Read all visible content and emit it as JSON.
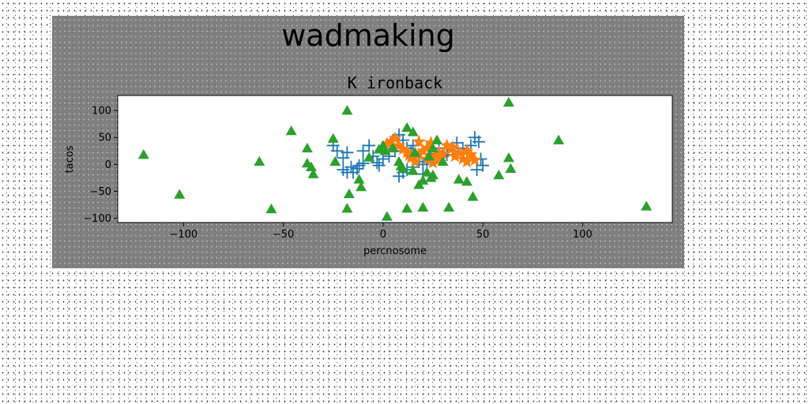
{
  "chart_data": {
    "type": "scatter",
    "suptitle": "wadmaking",
    "title": "K ironback",
    "xlabel": "percnosome",
    "ylabel": "tacos",
    "xlim": [
      -133,
      145
    ],
    "ylim": [
      -108,
      128
    ],
    "xticks": [
      -100,
      -50,
      0,
      50,
      100
    ],
    "yticks": [
      -100,
      -50,
      0,
      50,
      100
    ],
    "grid": false,
    "series": [
      {
        "marker": "plus",
        "color": "#1f77b4",
        "points": [
          [
            -25,
            35
          ],
          [
            -23,
            25
          ],
          [
            -20,
            12
          ],
          [
            -18,
            22
          ],
          [
            -16,
            -5
          ],
          [
            -20,
            -10
          ],
          [
            -18,
            -15
          ],
          [
            -15,
            -15
          ],
          [
            -13,
            -8
          ],
          [
            -12,
            -2
          ],
          [
            -10,
            2
          ],
          [
            -10,
            25
          ],
          [
            -7,
            35
          ],
          [
            -5,
            15
          ],
          [
            -3,
            3
          ],
          [
            -2,
            -2
          ],
          [
            0,
            10
          ],
          [
            3,
            35
          ],
          [
            5,
            45
          ],
          [
            8,
            55
          ],
          [
            10,
            45
          ],
          [
            12,
            30
          ],
          [
            14,
            22
          ],
          [
            16,
            15
          ],
          [
            18,
            5
          ],
          [
            20,
            0
          ],
          [
            22,
            5
          ],
          [
            24,
            12
          ],
          [
            26,
            20
          ],
          [
            10,
            -15
          ],
          [
            8,
            -22
          ],
          [
            12,
            -10
          ],
          [
            3,
            15
          ],
          [
            6,
            25
          ],
          [
            15,
            35
          ],
          [
            28,
            30
          ],
          [
            30,
            15
          ],
          [
            32,
            18
          ],
          [
            35,
            25
          ],
          [
            37,
            40
          ],
          [
            40,
            30
          ],
          [
            42,
            20
          ],
          [
            44,
            35
          ],
          [
            46,
            50
          ],
          [
            48,
            42
          ],
          [
            49,
            10
          ],
          [
            47,
            -10
          ],
          [
            50,
            -2
          ],
          [
            20,
            -18
          ],
          [
            15,
            -5
          ]
        ]
      },
      {
        "marker": "star",
        "color": "#ff7f0e",
        "points": [
          [
            2,
            38
          ],
          [
            4,
            42
          ],
          [
            6,
            48
          ],
          [
            8,
            35
          ],
          [
            10,
            28
          ],
          [
            12,
            22
          ],
          [
            14,
            12
          ],
          [
            16,
            5
          ],
          [
            18,
            18
          ],
          [
            20,
            25
          ],
          [
            22,
            30
          ],
          [
            24,
            40
          ],
          [
            26,
            15
          ],
          [
            28,
            8
          ],
          [
            30,
            20
          ],
          [
            32,
            35
          ],
          [
            34,
            28
          ],
          [
            36,
            15
          ],
          [
            38,
            22
          ],
          [
            40,
            10
          ],
          [
            42,
            5
          ],
          [
            44,
            18
          ],
          [
            46,
            8
          ],
          [
            18,
            42
          ],
          [
            22,
            10
          ],
          [
            13,
            17
          ],
          [
            28,
            22
          ],
          [
            35,
            32
          ],
          [
            25,
            3
          ],
          [
            42,
            25
          ]
        ]
      },
      {
        "marker": "triangle",
        "color": "#2ca02c",
        "points": [
          [
            -120,
            18
          ],
          [
            -102,
            -56
          ],
          [
            -62,
            5
          ],
          [
            -56,
            -83
          ],
          [
            -46,
            62
          ],
          [
            -38,
            30
          ],
          [
            -38,
            2
          ],
          [
            -36,
            -5
          ],
          [
            -35,
            -18
          ],
          [
            -25,
            48
          ],
          [
            -24,
            5
          ],
          [
            -18,
            100
          ],
          [
            -17,
            -55
          ],
          [
            -18,
            -82
          ],
          [
            -12,
            -28
          ],
          [
            -11,
            -42
          ],
          [
            -7,
            13
          ],
          [
            -2,
            28
          ],
          [
            0,
            35
          ],
          [
            1,
            25
          ],
          [
            2,
            -97
          ],
          [
            8,
            5
          ],
          [
            9,
            -3
          ],
          [
            10,
            -8
          ],
          [
            12,
            68
          ],
          [
            12,
            -82
          ],
          [
            15,
            60
          ],
          [
            16,
            22
          ],
          [
            18,
            -38
          ],
          [
            20,
            -30
          ],
          [
            20,
            -80
          ],
          [
            22,
            -15
          ],
          [
            23,
            15
          ],
          [
            24,
            -25
          ],
          [
            25,
            -20
          ],
          [
            27,
            45
          ],
          [
            33,
            -80
          ],
          [
            38,
            -28
          ],
          [
            42,
            -32
          ],
          [
            45,
            -60
          ],
          [
            58,
            -20
          ],
          [
            63,
            115
          ],
          [
            63,
            12
          ],
          [
            64,
            -8
          ],
          [
            88,
            45
          ],
          [
            132,
            -78
          ],
          [
            5,
            30
          ],
          [
            30,
            5
          ],
          [
            25,
            30
          ],
          [
            15,
            -12
          ]
        ]
      }
    ]
  }
}
